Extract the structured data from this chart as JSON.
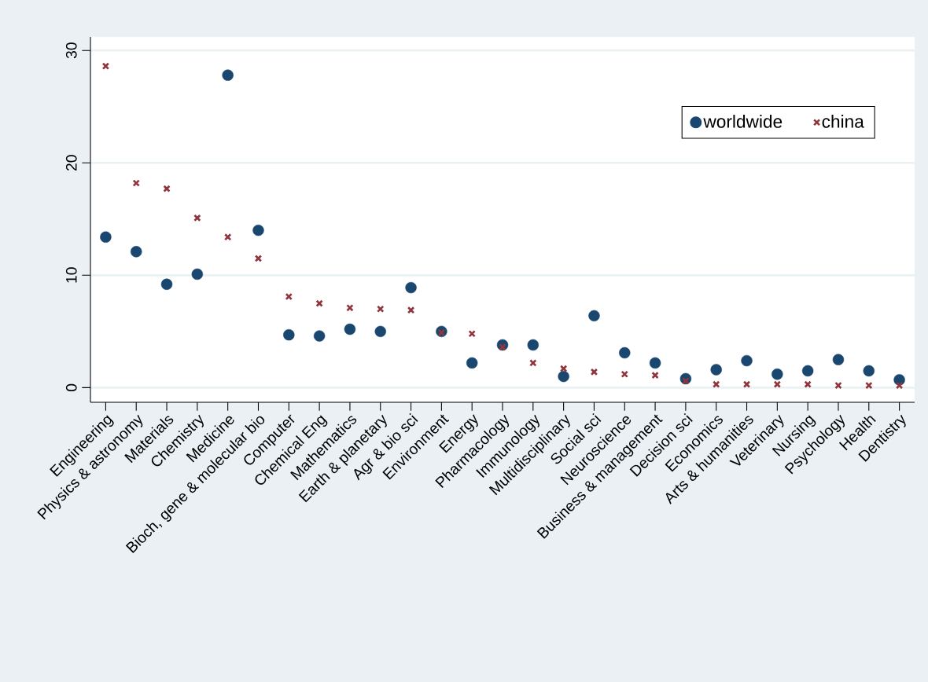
{
  "chart_data": {
    "type": "scatter",
    "categories": [
      "Engineering",
      "Physics & astronomy",
      "Materials",
      "Chemistry",
      "Medicine",
      "Bioch, gene & molecular bio",
      "Computer",
      "Chemical Eng",
      "Mathematics",
      "Earth & planetary",
      "Agr & bio sci",
      "Environment",
      "Energy",
      "Pharmacology",
      "Immunology",
      "Multidisciplinary",
      "Social sci",
      "Neuroscience",
      "Business & management",
      "Decision sci",
      "Economics",
      "Arts & humanities",
      "Veterinary",
      "Nursing",
      "Psychology",
      "Health",
      "Dentistry"
    ],
    "series": [
      {
        "name": "worldwide",
        "color": "#1a476f",
        "marker": "circle",
        "values": [
          13.4,
          12.1,
          9.2,
          10.1,
          27.8,
          14.0,
          4.7,
          4.6,
          5.2,
          5.0,
          8.9,
          5.0,
          2.2,
          3.8,
          3.8,
          1.0,
          6.4,
          3.1,
          2.2,
          0.8,
          1.6,
          2.4,
          1.2,
          1.5,
          2.5,
          1.5,
          0.7
        ]
      },
      {
        "name": "china",
        "color": "#90353b",
        "marker": "cross",
        "values": [
          28.6,
          18.2,
          17.7,
          15.1,
          13.4,
          11.5,
          8.1,
          7.5,
          7.1,
          7.0,
          6.9,
          4.9,
          4.8,
          3.6,
          2.2,
          1.7,
          1.4,
          1.2,
          1.1,
          0.6,
          0.3,
          0.3,
          0.3,
          0.3,
          0.2,
          0.2,
          0.2
        ]
      }
    ],
    "ylim": [
      -1.3,
      31.2
    ],
    "yticks": [
      0,
      10,
      20,
      30
    ],
    "grid": "y",
    "legend": "top right"
  }
}
